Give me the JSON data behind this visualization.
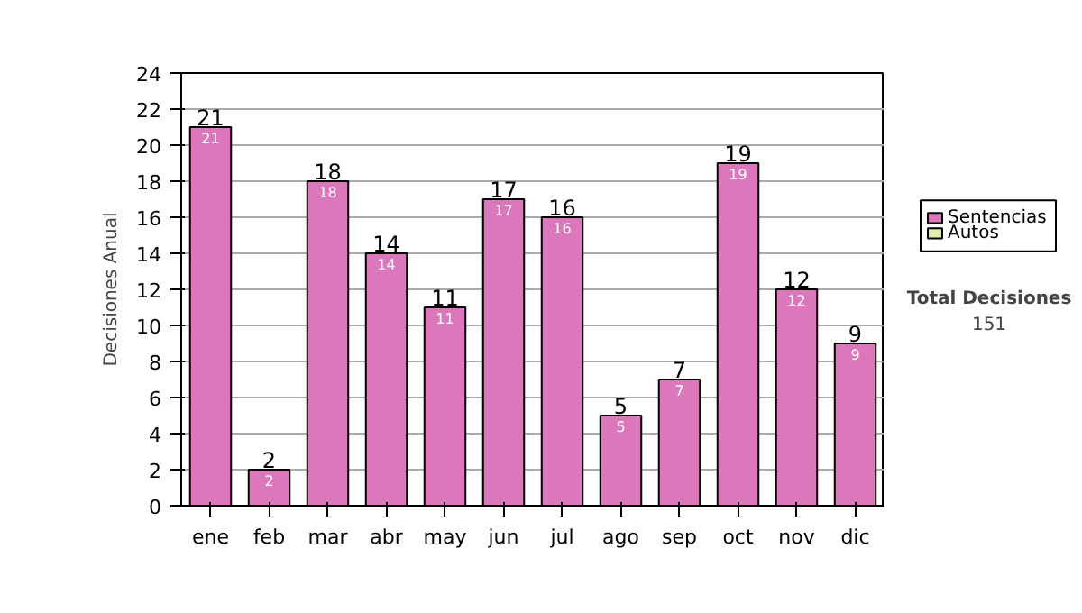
{
  "chart_data": {
    "type": "bar",
    "stacked": true,
    "ylabel": "Decisiones Anual",
    "categories": [
      "ene",
      "feb",
      "mar",
      "abr",
      "may",
      "jun",
      "jul",
      "ago",
      "sep",
      "oct",
      "nov",
      "dic"
    ],
    "series": [
      {
        "name": "Sentencias",
        "color": "#dd77bb",
        "values": [
          21,
          2,
          18,
          14,
          11,
          17,
          16,
          5,
          7,
          19,
          12,
          9
        ],
        "value_labels": [
          "21",
          "2",
          "18",
          "14",
          "11",
          "17",
          "16",
          "5",
          "7",
          "19",
          "12",
          "9"
        ]
      },
      {
        "name": "Autos",
        "color": "#ddeeaa",
        "values": [
          0,
          0,
          0,
          0,
          0,
          0,
          0,
          0,
          0,
          0,
          0,
          0
        ]
      }
    ],
    "totals": [
      "21",
      "2",
      "18",
      "14",
      "11",
      "17",
      "16",
      "5",
      "7",
      "19",
      "12",
      "9"
    ],
    "ylim": [
      0,
      24
    ],
    "yticks": [
      0,
      2,
      4,
      6,
      8,
      10,
      12,
      14,
      16,
      18,
      20,
      22,
      24
    ],
    "grid": "y",
    "legend": "right",
    "annotations": [
      "Total Decisiones",
      "151"
    ]
  }
}
